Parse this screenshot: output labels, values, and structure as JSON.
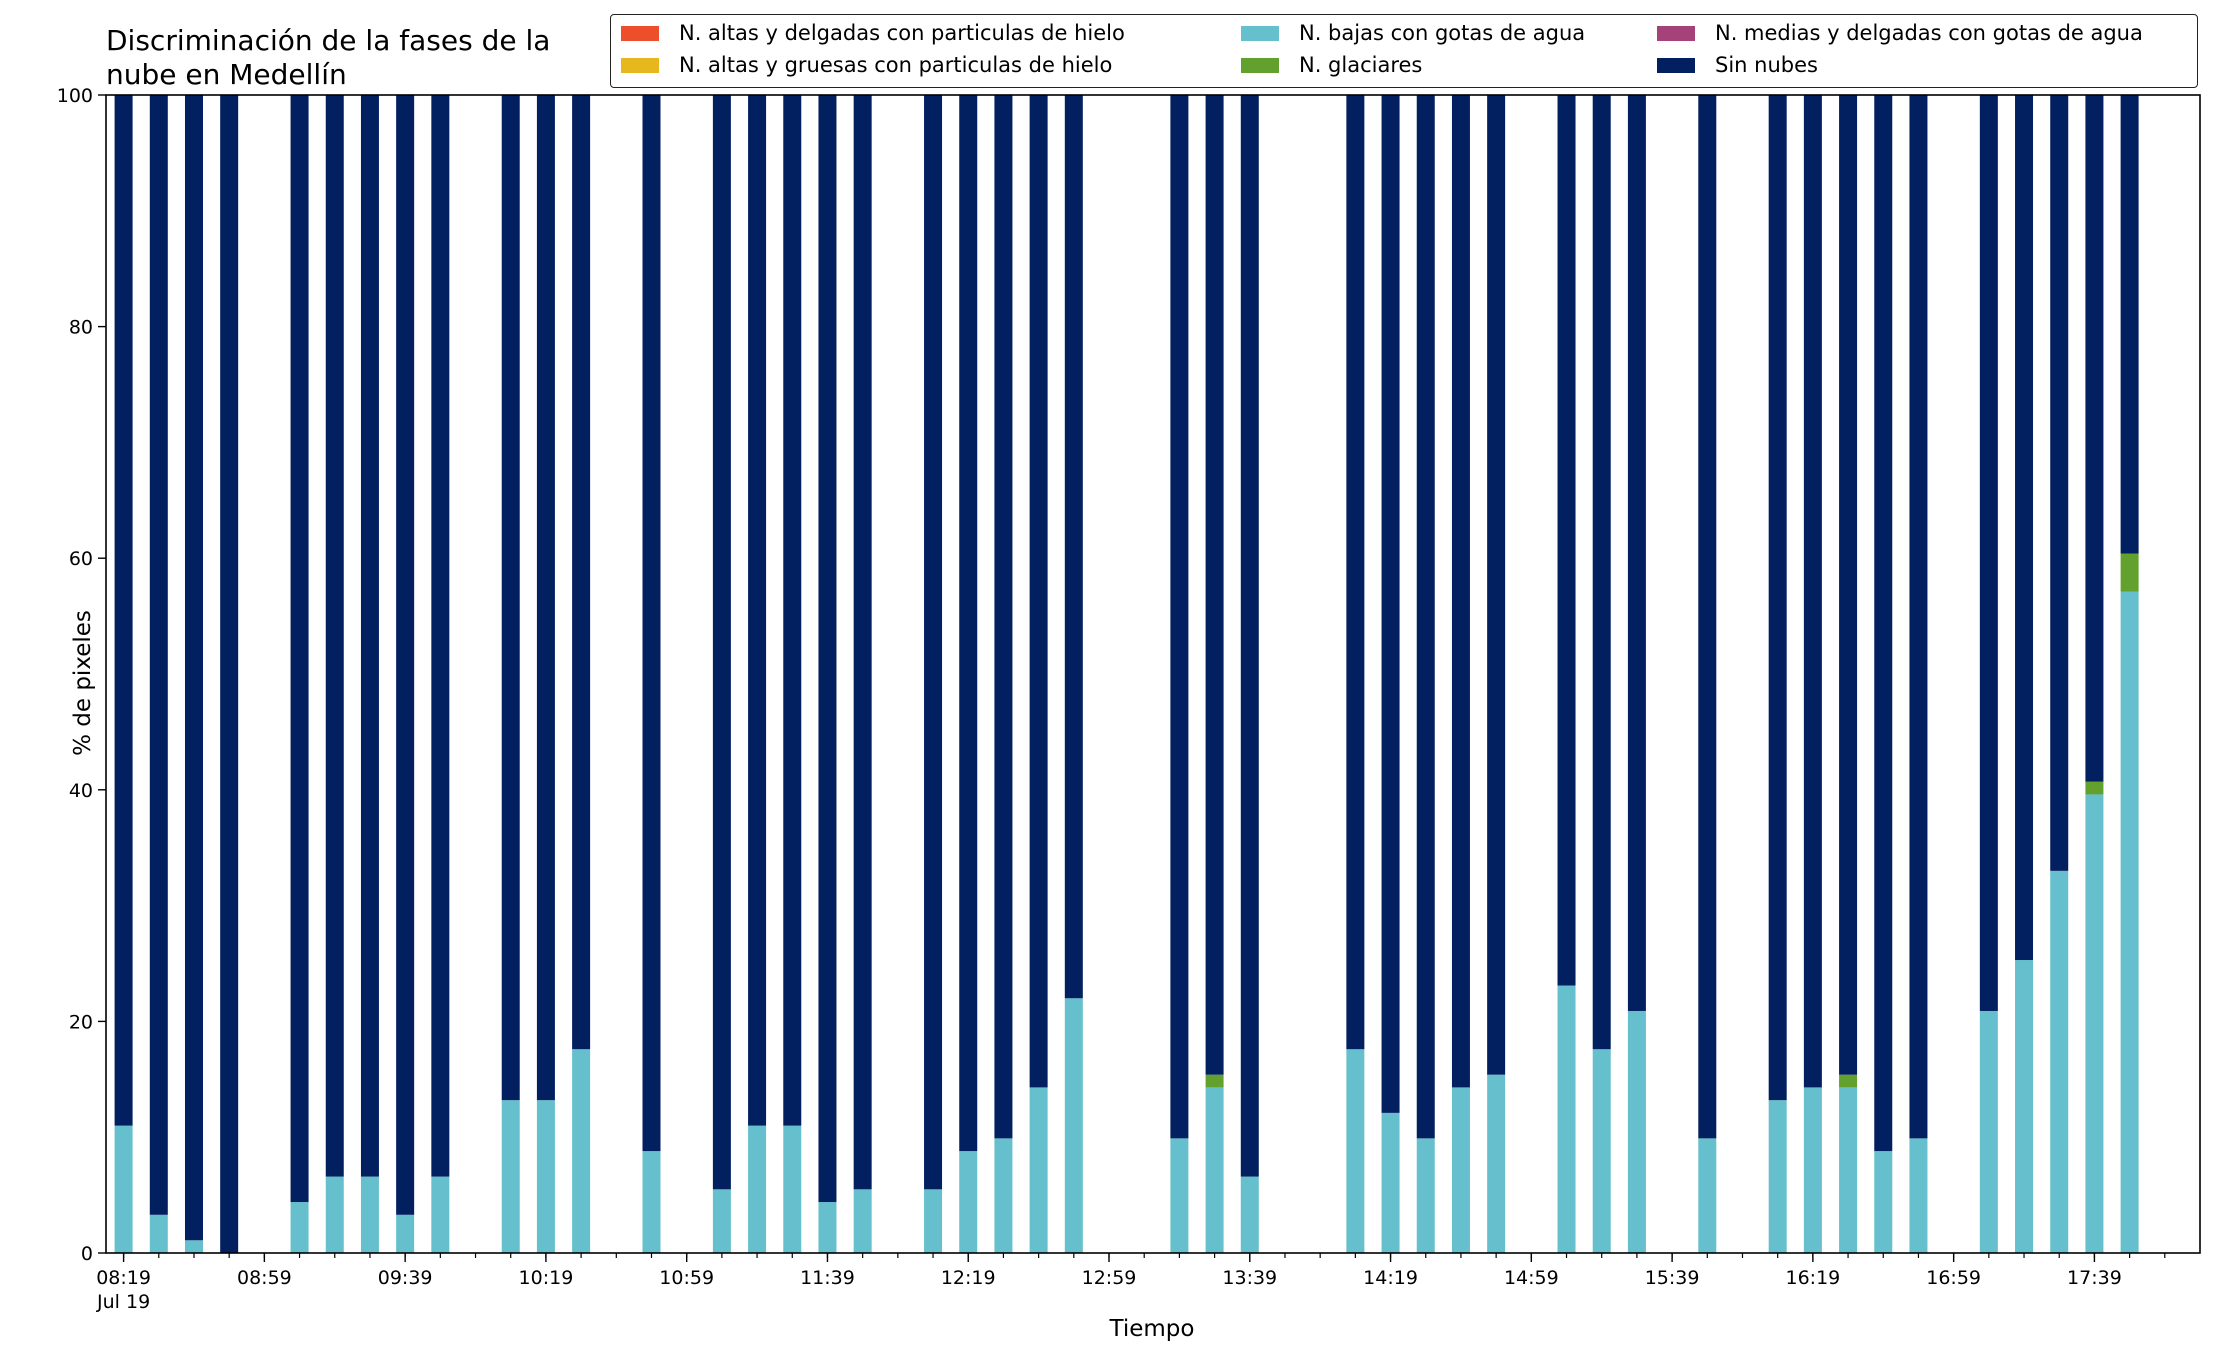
{
  "title": "Discriminación de la fases de la\nnube en Medellín",
  "chart_data": {
    "type": "bar",
    "stacked": true,
    "title": "Discriminación de la fases de la\nnube en Medellín",
    "xlabel": "Tiempo",
    "ylabel": "% de pixeles",
    "ylim": [
      0,
      100
    ],
    "yticks": [
      0,
      20,
      40,
      60,
      80,
      100
    ],
    "xlim": [
      "08:14",
      "18:09"
    ],
    "x_date_label": "Jul 19",
    "xticks_major": [
      "08:19",
      "08:59",
      "09:39",
      "10:19",
      "10:59",
      "11:39",
      "12:19",
      "12:59",
      "13:39",
      "14:19",
      "14:59",
      "15:39",
      "16:19",
      "16:59",
      "17:39"
    ],
    "xticks_minor_interval_minutes": 10,
    "grid": false,
    "legend_position": "top-right",
    "x": [
      "08:19",
      "08:29",
      "08:39",
      "08:49",
      "09:09",
      "09:19",
      "09:29",
      "09:39",
      "09:49",
      "10:09",
      "10:19",
      "10:29",
      "10:49",
      "11:09",
      "11:19",
      "11:29",
      "11:39",
      "11:49",
      "12:09",
      "12:19",
      "12:29",
      "12:39",
      "12:49",
      "13:19",
      "13:29",
      "13:39",
      "14:09",
      "14:19",
      "14:29",
      "14:39",
      "14:49",
      "15:09",
      "15:19",
      "15:29",
      "15:49",
      "16:09",
      "16:19",
      "16:29",
      "16:39",
      "16:49",
      "17:09",
      "17:19",
      "17:29",
      "17:39",
      "17:49"
    ],
    "series": [
      {
        "name": "N. altas y delgadas con particulas de hielo",
        "color": "#ed4e2b",
        "values": [
          0,
          0,
          0,
          0,
          0,
          0,
          0,
          0,
          0,
          0,
          0,
          0,
          0,
          0,
          0,
          0,
          0,
          0,
          0,
          0,
          0,
          0,
          0,
          0,
          0,
          0,
          0,
          0,
          0,
          0,
          0,
          0,
          0,
          0,
          0,
          0,
          0,
          0,
          0,
          0,
          0,
          0,
          0,
          0,
          0
        ]
      },
      {
        "name": "N. altas y gruesas con particulas de hielo",
        "color": "#e6b81e",
        "values": [
          0,
          0,
          0,
          0,
          0,
          0,
          0,
          0,
          0,
          0,
          0,
          0,
          0,
          0,
          0,
          0,
          0,
          0,
          0,
          0,
          0,
          0,
          0,
          0,
          0,
          0,
          0,
          0,
          0,
          0,
          0,
          0,
          0,
          0,
          0,
          0,
          0,
          0,
          0,
          0,
          0,
          0,
          0,
          0,
          0
        ]
      },
      {
        "name": "N. bajas con gotas de agua",
        "color": "#66bfcc",
        "values": [
          11,
          3.3,
          1.1,
          0,
          4.4,
          6.6,
          6.6,
          3.3,
          6.6,
          13.2,
          13.2,
          17.6,
          8.8,
          5.5,
          11,
          11,
          4.4,
          5.5,
          5.5,
          8.8,
          9.9,
          14.3,
          22,
          9.9,
          14.3,
          6.6,
          17.6,
          12.1,
          9.9,
          14.3,
          15.4,
          23.1,
          17.6,
          20.9,
          9.9,
          13.2,
          14.3,
          14.3,
          8.8,
          9.9,
          20.9,
          25.3,
          33,
          39.6,
          57.1
        ]
      },
      {
        "name": "N. glaciares",
        "color": "#62a12e",
        "values": [
          0,
          0,
          0,
          0,
          0,
          0,
          0,
          0,
          0,
          0,
          0,
          0,
          0,
          0,
          0,
          0,
          0,
          0,
          0,
          0,
          0,
          0,
          0,
          0,
          1.1,
          0,
          0,
          0,
          0,
          0,
          0,
          0,
          0,
          0,
          0,
          0,
          0,
          1.1,
          0,
          0,
          0,
          0,
          0,
          1.1,
          3.3
        ]
      },
      {
        "name": "N. medias y delgadas con gotas de agua",
        "color": "#a6427a",
        "values": [
          0,
          0,
          0,
          0,
          0,
          0,
          0,
          0,
          0,
          0,
          0,
          0,
          0,
          0,
          0,
          0,
          0,
          0,
          0,
          0,
          0,
          0,
          0,
          0,
          0,
          0,
          0,
          0,
          0,
          0,
          0,
          0,
          0,
          0,
          0,
          0,
          0,
          0,
          0,
          0,
          0,
          0,
          0,
          0,
          0
        ]
      },
      {
        "name": "Sin nubes",
        "color": "#021f5f",
        "values": [
          89,
          96.7,
          98.9,
          100,
          95.6,
          93.4,
          93.4,
          96.7,
          93.4,
          86.8,
          86.8,
          82.4,
          91.2,
          94.5,
          89,
          89,
          95.6,
          94.5,
          94.5,
          91.2,
          90.1,
          85.7,
          78,
          90.1,
          84.6,
          93.4,
          82.4,
          87.9,
          90.1,
          85.7,
          84.6,
          76.9,
          82.4,
          79.1,
          90.1,
          86.8,
          85.7,
          84.6,
          91.2,
          90.1,
          79.1,
          74.7,
          67,
          59.3,
          39.6
        ]
      }
    ]
  }
}
